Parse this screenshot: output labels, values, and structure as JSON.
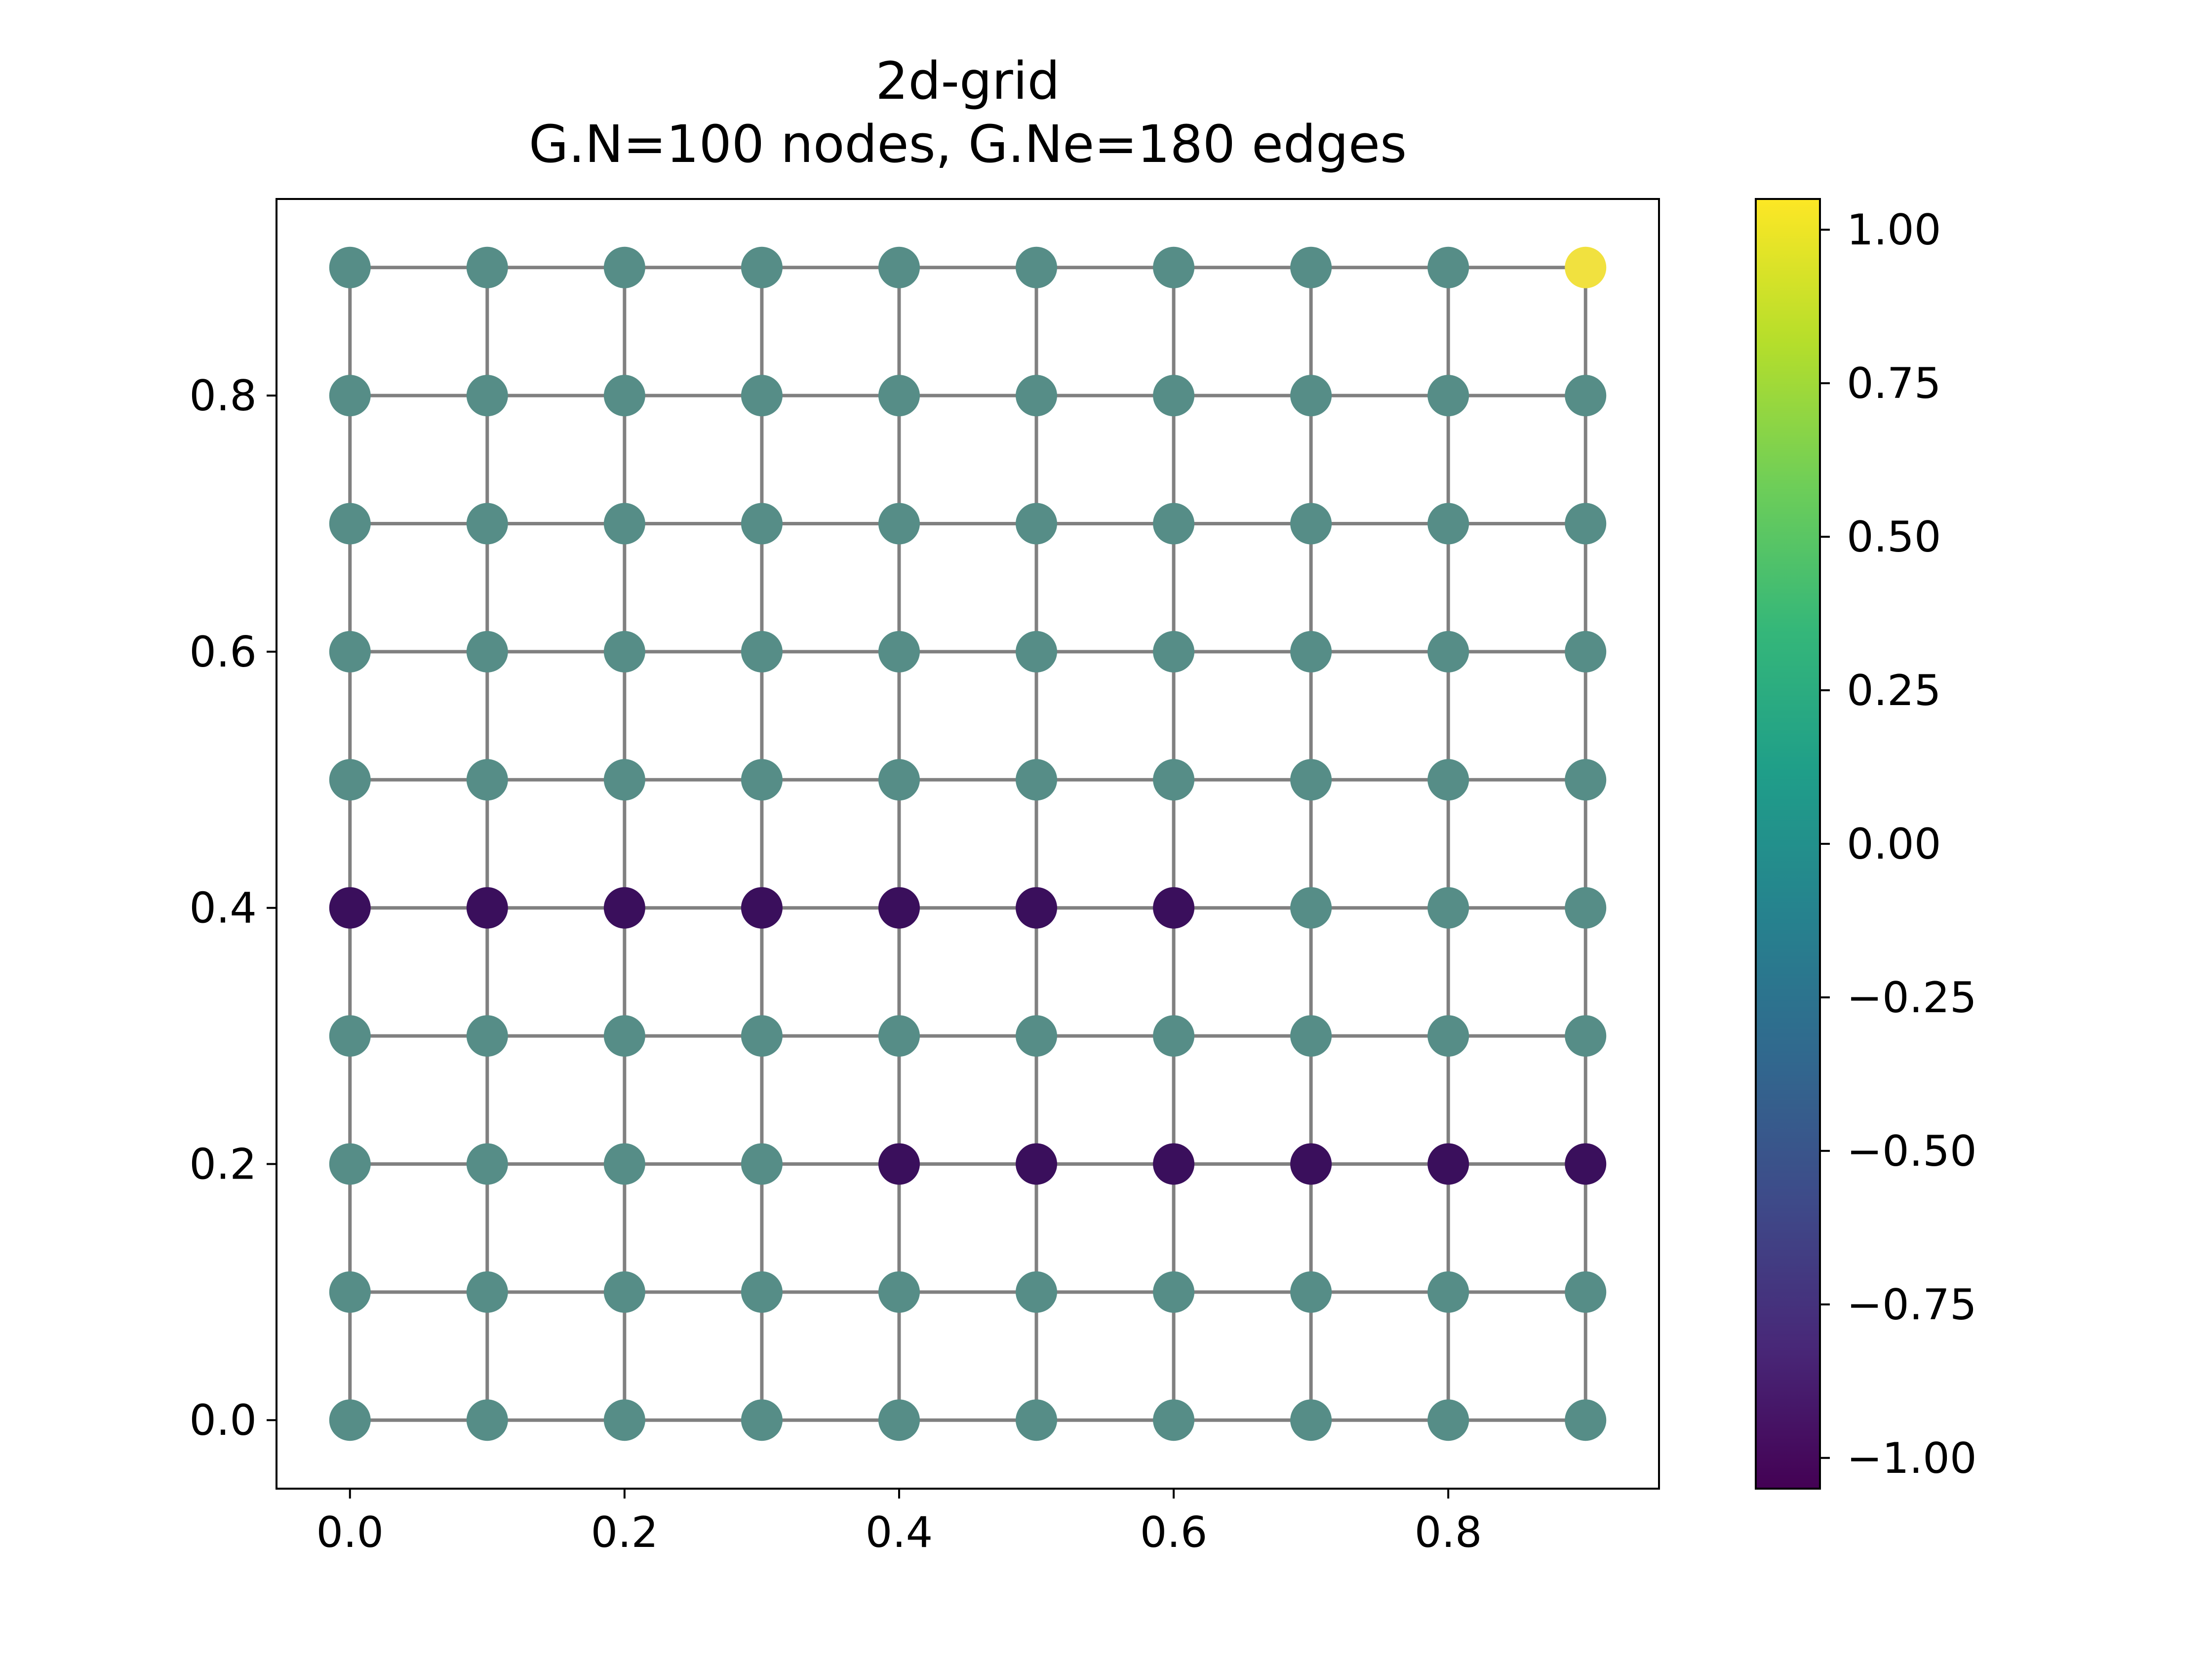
{
  "title": {
    "line1": "2d-grid",
    "line2": "G.N=100 nodes, G.Ne=180 edges"
  },
  "colors": {
    "edge": "#808080",
    "neutral": "#568d87",
    "negative": "#3a0f5c",
    "positive": "#f1e13f",
    "axis": "#000000"
  },
  "colorbar": {
    "range": [
      -1.05,
      1.05
    ],
    "ticks": [
      1.0,
      0.75,
      0.5,
      0.25,
      0.0,
      -0.25,
      -0.5,
      -0.75,
      -1.0
    ],
    "tick_labels": [
      "1.00",
      "0.75",
      "0.50",
      "0.25",
      "0.00",
      "−0.25",
      "−0.50",
      "−0.75",
      "−1.00"
    ],
    "colormap_stops": [
      "#440154",
      "#482878",
      "#3e4a89",
      "#31688e",
      "#26828e",
      "#1f9e89",
      "#35b779",
      "#6ece58",
      "#b5de2b",
      "#fde725"
    ]
  },
  "chart_data": {
    "type": "scatter",
    "title": "2d-grid\nG.N=100 nodes, G.Ne=180 edges",
    "xlabel": "",
    "ylabel": "",
    "xlim": [
      -0.0535,
      0.9535
    ],
    "ylim": [
      -0.0535,
      0.9535
    ],
    "x_ticks": [
      0.0,
      0.2,
      0.4,
      0.6,
      0.8
    ],
    "x_tick_labels": [
      "0.0",
      "0.2",
      "0.4",
      "0.6",
      "0.8"
    ],
    "y_ticks": [
      0.0,
      0.2,
      0.4,
      0.6,
      0.8
    ],
    "y_tick_labels": [
      "0.0",
      "0.2",
      "0.4",
      "0.6",
      "0.8"
    ],
    "grid": false,
    "grid_x": [
      0.0,
      0.1,
      0.2,
      0.3,
      0.4,
      0.5,
      0.6,
      0.7,
      0.8,
      0.9
    ],
    "grid_y": [
      0.0,
      0.1,
      0.2,
      0.3,
      0.4,
      0.5,
      0.6,
      0.7,
      0.8,
      0.9
    ],
    "default_value": 0.0,
    "nonzero_nodes": [
      {
        "x": 0.0,
        "y": 0.4,
        "value": -1
      },
      {
        "x": 0.1,
        "y": 0.4,
        "value": -1
      },
      {
        "x": 0.2,
        "y": 0.4,
        "value": -1
      },
      {
        "x": 0.3,
        "y": 0.4,
        "value": -1
      },
      {
        "x": 0.4,
        "y": 0.4,
        "value": -1
      },
      {
        "x": 0.5,
        "y": 0.4,
        "value": -1
      },
      {
        "x": 0.6,
        "y": 0.4,
        "value": -1
      },
      {
        "x": 0.4,
        "y": 0.2,
        "value": -1
      },
      {
        "x": 0.5,
        "y": 0.2,
        "value": -1
      },
      {
        "x": 0.6,
        "y": 0.2,
        "value": -1
      },
      {
        "x": 0.7,
        "y": 0.2,
        "value": -1
      },
      {
        "x": 0.8,
        "y": 0.2,
        "value": -1
      },
      {
        "x": 0.9,
        "y": 0.2,
        "value": -1
      },
      {
        "x": 0.9,
        "y": 0.9,
        "value": 1
      }
    ]
  }
}
